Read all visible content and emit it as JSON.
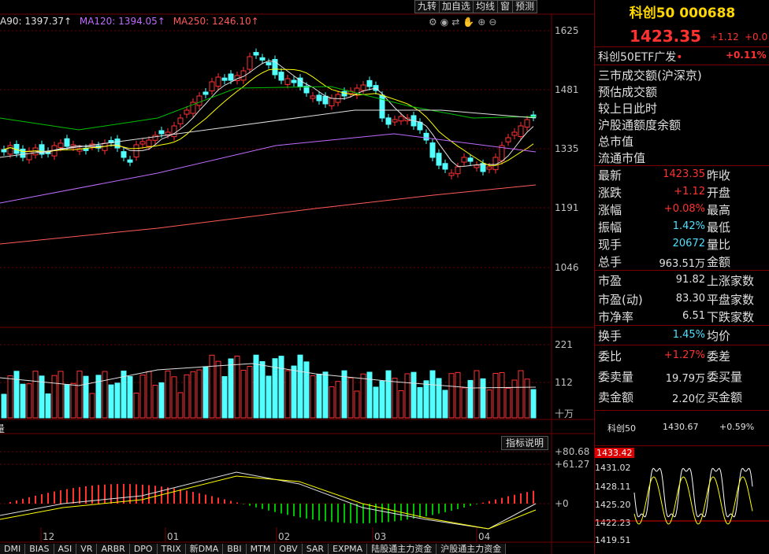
{
  "ma_legend": [
    {
      "text": "A90: 1397.37↑",
      "color": "#e0e0e0"
    },
    {
      "text": "MA120: 1394.05↑",
      "color": "#c06cff"
    },
    {
      "text": "MA250: 1246.10↑",
      "color": "#ff5a5a"
    }
  ],
  "toolbar": [
    "九转",
    "加自选",
    "均线",
    "窗",
    "预测"
  ],
  "icons": [
    "settings-icon",
    "eye-icon",
    "swap-icon",
    "hand-icon",
    "zoom-in-icon",
    "zoom-out-icon"
  ],
  "price_axis": [
    "1625",
    "1481",
    "1335",
    "1191",
    "1046"
  ],
  "volume_axis": [
    "221",
    "112",
    "十万"
  ],
  "indicator_axis": [
    "+80.68",
    "+61.27",
    "+0"
  ],
  "month_labels": [
    "12",
    "01",
    "02",
    "03",
    "04"
  ],
  "volume_label": "量",
  "indicator_button": "指标说明",
  "bottom_tabs": [
    "DMI",
    "BIAS",
    "ASI",
    "VR",
    "ARBR",
    "DPO",
    "TRIX",
    "新DMA",
    "BBI",
    "MTM",
    "OBV",
    "SAR",
    "EXPMA",
    "陆股通主力资金",
    "沪股通主力资金"
  ],
  "quote": {
    "title": "科创50 000688",
    "price": "1423.35",
    "change": "+1.12",
    "change_pct_cut": "+0.0",
    "etf_name": "科创50ETF广发",
    "etf_dot": "•",
    "etf_pct": "+0.11%"
  },
  "market_rows": [
    "三市成交额(沪深京)",
    "预估成交额",
    "较上日此时",
    "沪股通额度余额",
    "总市值",
    "流通市值"
  ],
  "quote_rows": [
    {
      "label": "最新",
      "value": "1423.35",
      "color": "red",
      "label2": "昨收"
    },
    {
      "label": "涨跌",
      "value": "+1.12",
      "color": "red",
      "label2": "开盘"
    },
    {
      "label": "涨幅",
      "value": "+0.08%",
      "color": "red",
      "label2": "最高"
    },
    {
      "label": "振幅",
      "value": "1.42%",
      "color": "cyan",
      "label2": "最低"
    },
    {
      "label": "现手",
      "value": "20672",
      "color": "cyan",
      "label2": "量比"
    },
    {
      "label": "总手",
      "value": "963.51万",
      "color": "white",
      "label2": "金额"
    },
    {
      "label": "市盈",
      "value": "91.82",
      "color": "white",
      "label2": "上涨家数"
    },
    {
      "label": "市盈(动)",
      "value": "83.30",
      "color": "white",
      "label2": "平盘家数"
    },
    {
      "label": "市净率",
      "value": "6.51",
      "color": "white",
      "label2": "下跌家数"
    },
    {
      "label": "换手",
      "value": "1.45%",
      "color": "cyan",
      "label2": "均价"
    },
    {
      "label": "委比",
      "value": "+1.27%",
      "color": "red",
      "label2": "委差"
    },
    {
      "label": "委卖量",
      "value": "19.79万",
      "color": "white",
      "label2": "委买量"
    },
    {
      "label": "卖金额",
      "value": "2.20亿",
      "color": "white",
      "label2": "买金额"
    }
  ],
  "mini_chart": {
    "name": "科创50",
    "price": "1430.67",
    "pct": "+0.59%",
    "levels": [
      "1433.42",
      "1431.02",
      "1428.11",
      "1425.20",
      "1422.23",
      "1419.51"
    ]
  },
  "colors": {
    "up": "#ff3232",
    "down": "#54ffff",
    "ma_white": "#e0e0e0",
    "ma_yellow": "#ffff00",
    "ma_purple": "#c06cff",
    "ma_green": "#00c000",
    "ma_red": "#ff5a5a",
    "grid": "#700000"
  }
}
